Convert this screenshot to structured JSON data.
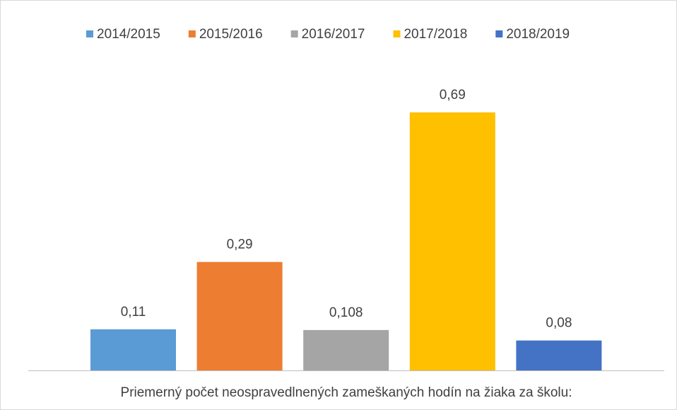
{
  "chart_data": {
    "type": "bar",
    "categories": [
      "Priemerný počet neospravedlnených zameškaných hodín na žiaka za školu:"
    ],
    "series": [
      {
        "name": "2014/2015",
        "color": "#5b9bd5",
        "values": [
          0.11
        ],
        "value_labels": [
          "0,11"
        ]
      },
      {
        "name": "2015/2016",
        "color": "#ed7d31",
        "values": [
          0.29
        ],
        "value_labels": [
          "0,29"
        ]
      },
      {
        "name": "2016/2017",
        "color": "#a5a5a5",
        "values": [
          0.108
        ],
        "value_labels": [
          "0,108"
        ]
      },
      {
        "name": "2017/2018",
        "color": "#ffc000",
        "values": [
          0.69
        ],
        "value_labels": [
          "0,69"
        ]
      },
      {
        "name": "2018/2019",
        "color": "#4472c4",
        "values": [
          0.08
        ],
        "value_labels": [
          "0,08"
        ]
      }
    ],
    "legend": "top"
  }
}
